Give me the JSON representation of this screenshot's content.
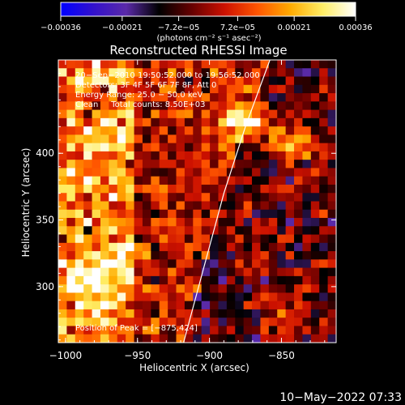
{
  "chart_data": {
    "type": "heatmap",
    "title": "Reconstructed RHESSI Image",
    "xlabel": "Heliocentric X (arcsec)",
    "ylabel": "Heliocentric Y (arcsec)",
    "xlim": [
      -1005,
      -812
    ],
    "ylim": [
      258,
      470
    ],
    "x_ticks": [
      -1000,
      -950,
      -900,
      -850
    ],
    "x_tick_labels": [
      "−1000",
      "−950",
      "−900",
      "−850"
    ],
    "y_ticks": [
      300,
      350,
      400
    ],
    "y_tick_labels": [
      "300",
      "350",
      "400"
    ],
    "colorbar": {
      "range": [
        -0.00036,
        0.00036
      ],
      "ticks": [
        -0.00036,
        -0.00021,
        -7.2e-05,
        7.2e-05,
        0.00021,
        0.00036
      ],
      "tick_labels": [
        "−0.00036",
        "−0.00021",
        "−7.2e−05",
        "7.2e−05",
        "0.00021",
        "0.00036"
      ],
      "units_label": "(photons cm⁻² s⁻¹ asec⁻²)",
      "colors": [
        "#0000ff",
        "#3311cc",
        "#5a2aa8",
        "#000000",
        "#660000",
        "#cc1100",
        "#ff5500",
        "#ffaa00",
        "#ffee66",
        "#ffffff"
      ]
    },
    "annotations": {
      "time_range": "20−Sep−2010 19:50:52.000 to 19:56:52.000",
      "detectors": "Detectors: 3F 4F 5F 6F 7F 8F, Att 0",
      "energy_range": "Energy Range: 25.0 − 50.0 keV",
      "clean": "Clean     Total counts: 8.50E+03",
      "peak": "Position of Peak = [−875,424]"
    },
    "peak": {
      "x": -875,
      "y": 424
    },
    "limb_curve": [
      [
        -918,
        258
      ],
      [
        -905,
        310
      ],
      [
        -890,
        370
      ],
      [
        -875,
        420
      ],
      [
        -858,
        470
      ]
    ],
    "intensity_grid_size": [
      33,
      34
    ]
  },
  "footer": {
    "timestamp": "10−May−2022 07:33"
  }
}
